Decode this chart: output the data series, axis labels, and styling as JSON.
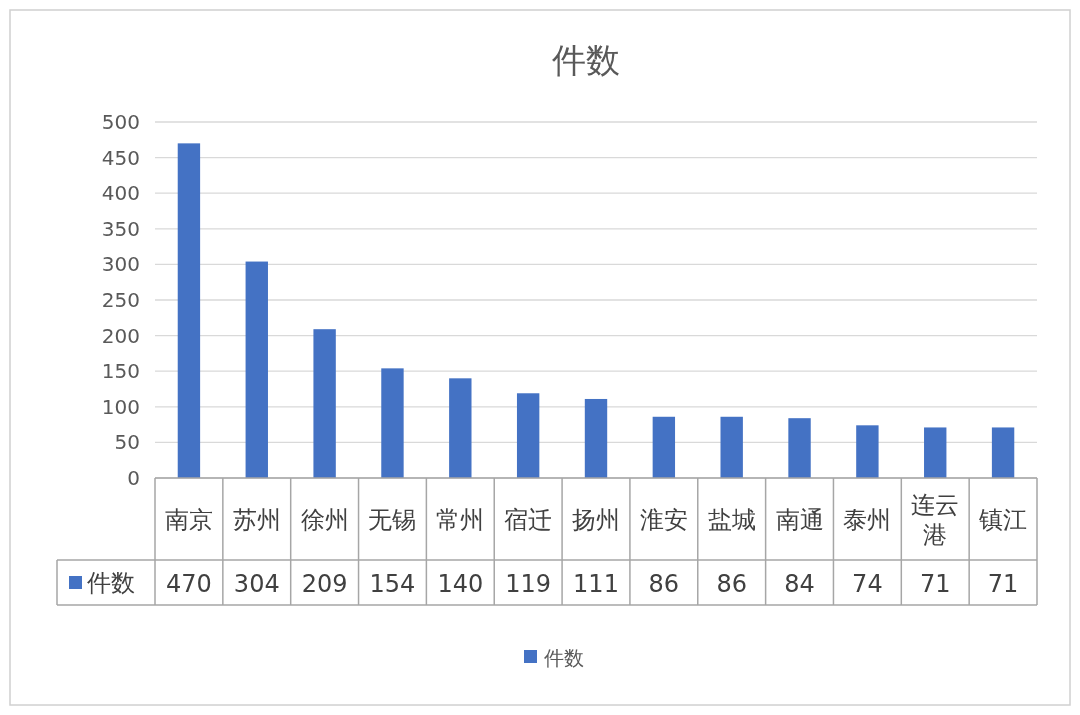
{
  "chart_data": {
    "type": "bar",
    "title": "件数",
    "categories": [
      "南京",
      "苏州",
      "徐州",
      "无锡",
      "常州",
      "宿迁",
      "扬州",
      "淮安",
      "盐城",
      "南通",
      "泰州",
      "连云港",
      "镇江"
    ],
    "series": [
      {
        "name": "件数",
        "color": "#4472c4",
        "values": [
          470,
          304,
          209,
          154,
          140,
          119,
          111,
          86,
          86,
          84,
          74,
          71,
          71
        ]
      }
    ],
    "ylim": [
      0,
      500
    ],
    "yticks": [
      0,
      50,
      100,
      150,
      200,
      250,
      300,
      350,
      400,
      450,
      500
    ],
    "grid": "y",
    "legend": "bottom",
    "data_labels": true
  }
}
